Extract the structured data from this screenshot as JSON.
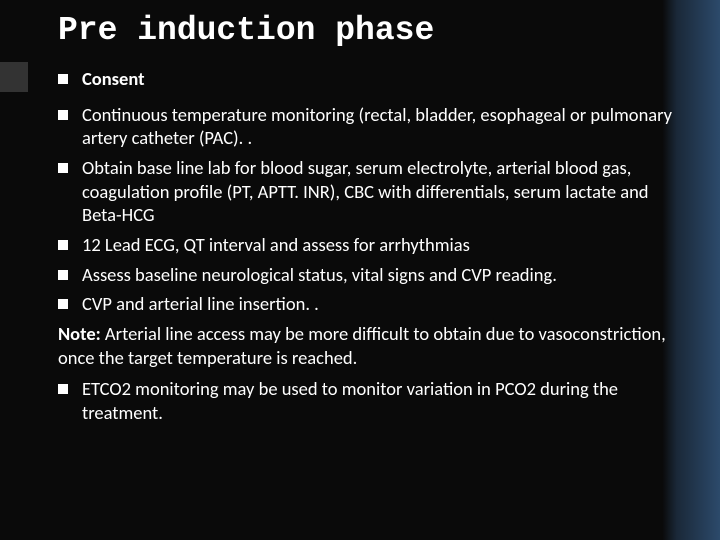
{
  "title": "Pre induction phase",
  "bullets": {
    "b0": "Consent",
    "b1": "Continuous temperature monitoring (rectal, bladder, esophageal or pulmonary artery catheter (PAC). .",
    "b2": "Obtain base line lab for blood sugar, serum electrolyte, arterial blood gas, coagulation profile (PT, APTT. INR), CBC with differentials, serum lactate and Beta-HCG",
    "b3": "12 Lead ECG, QT interval and assess for arrhythmias",
    "b4": "Assess baseline neurological status, vital signs and CVP reading.",
    "b5": "CVP and arterial line insertion. .",
    "b6": "ETCO2 monitoring may be used to monitor variation in PCO2 during the treatment."
  },
  "note": {
    "label": "Note:",
    "text": "  Arterial line access may be more difficult to obtain due to vasoconstriction, once the target temperature is reached."
  },
  "style": {
    "background_left": "#0a0a0a",
    "background_right": "#2c4a6b",
    "text_color": "#ffffff",
    "title_font": "Courier New",
    "body_font": "Segoe UI",
    "title_fontsize": 33,
    "body_fontsize": 18.5,
    "bullet_marker_color": "#ffffff",
    "bullet_marker_size": 10
  }
}
